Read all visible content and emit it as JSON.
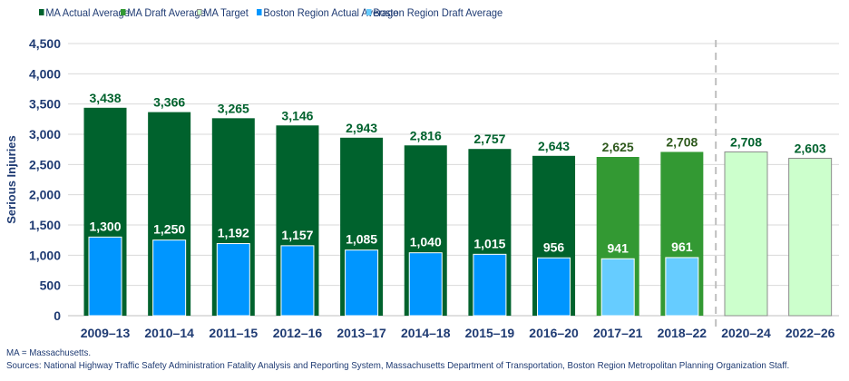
{
  "chart_data": {
    "type": "bar",
    "ylabel": "Serious Injuries",
    "ylim": [
      0,
      4500
    ],
    "yticks": [
      0,
      500,
      1000,
      1500,
      2000,
      2500,
      3000,
      3500,
      4000,
      4500
    ],
    "ytick_labels": [
      "0",
      "500",
      "1,000",
      "1,500",
      "2,000",
      "2,500",
      "3,000",
      "3,500",
      "4,000",
      "4,500"
    ],
    "grid": true,
    "legend_position": "top",
    "categories": [
      "2009–13",
      "2010–14",
      "2011–15",
      "2012–16",
      "2013–17",
      "2014–18",
      "2015–19",
      "2016–20",
      "2017–21",
      "2018–22",
      "2020–24",
      "2022–26"
    ],
    "ma_values": [
      3438,
      3366,
      3265,
      3146,
      2943,
      2816,
      2757,
      2643,
      2625,
      2708,
      2708,
      2603
    ],
    "ma_value_labels": [
      "3,438",
      "3,366",
      "3,265",
      "3,146",
      "2,943",
      "2,816",
      "2,757",
      "2,643",
      "2,625",
      "2,708",
      "2,708",
      "2,603"
    ],
    "ma_kind": [
      "actual",
      "actual",
      "actual",
      "actual",
      "actual",
      "actual",
      "actual",
      "actual",
      "draft",
      "draft",
      "target",
      "target"
    ],
    "boston_values": [
      1300,
      1250,
      1192,
      1157,
      1085,
      1040,
      1015,
      956,
      941,
      961,
      null,
      null
    ],
    "boston_value_labels": [
      "1,300",
      "1,250",
      "1,192",
      "1,157",
      "1,085",
      "1,040",
      "1,015",
      "956",
      "941",
      "961",
      "",
      ""
    ],
    "boston_kind": [
      "actual",
      "actual",
      "actual",
      "actual",
      "actual",
      "actual",
      "actual",
      "actual",
      "draft",
      "draft",
      null,
      null
    ],
    "series": [
      {
        "name": "MA Actual Average",
        "color": "#00622d"
      },
      {
        "name": "MA Draft Average",
        "color": "#339933"
      },
      {
        "name": "MA Target",
        "color": "#ccffcc"
      },
      {
        "name": "Boston Region Actual Average",
        "color": "#0096ff"
      },
      {
        "name": "Boston Region Draft Average",
        "color": "#66ccff"
      }
    ],
    "label_colors": {
      "actual": "#00622d",
      "draft": "#2f5a1e",
      "target": "#00622d",
      "boston": "#ffffff"
    }
  },
  "footnotes": [
    "MA = Massachusetts.",
    "Sources: National Highway Traffic Safety Administration Fatality Analysis and Reporting System, Massachusetts Department of Transportation, Boston Region Metropolitan Planning Organization Staff."
  ]
}
